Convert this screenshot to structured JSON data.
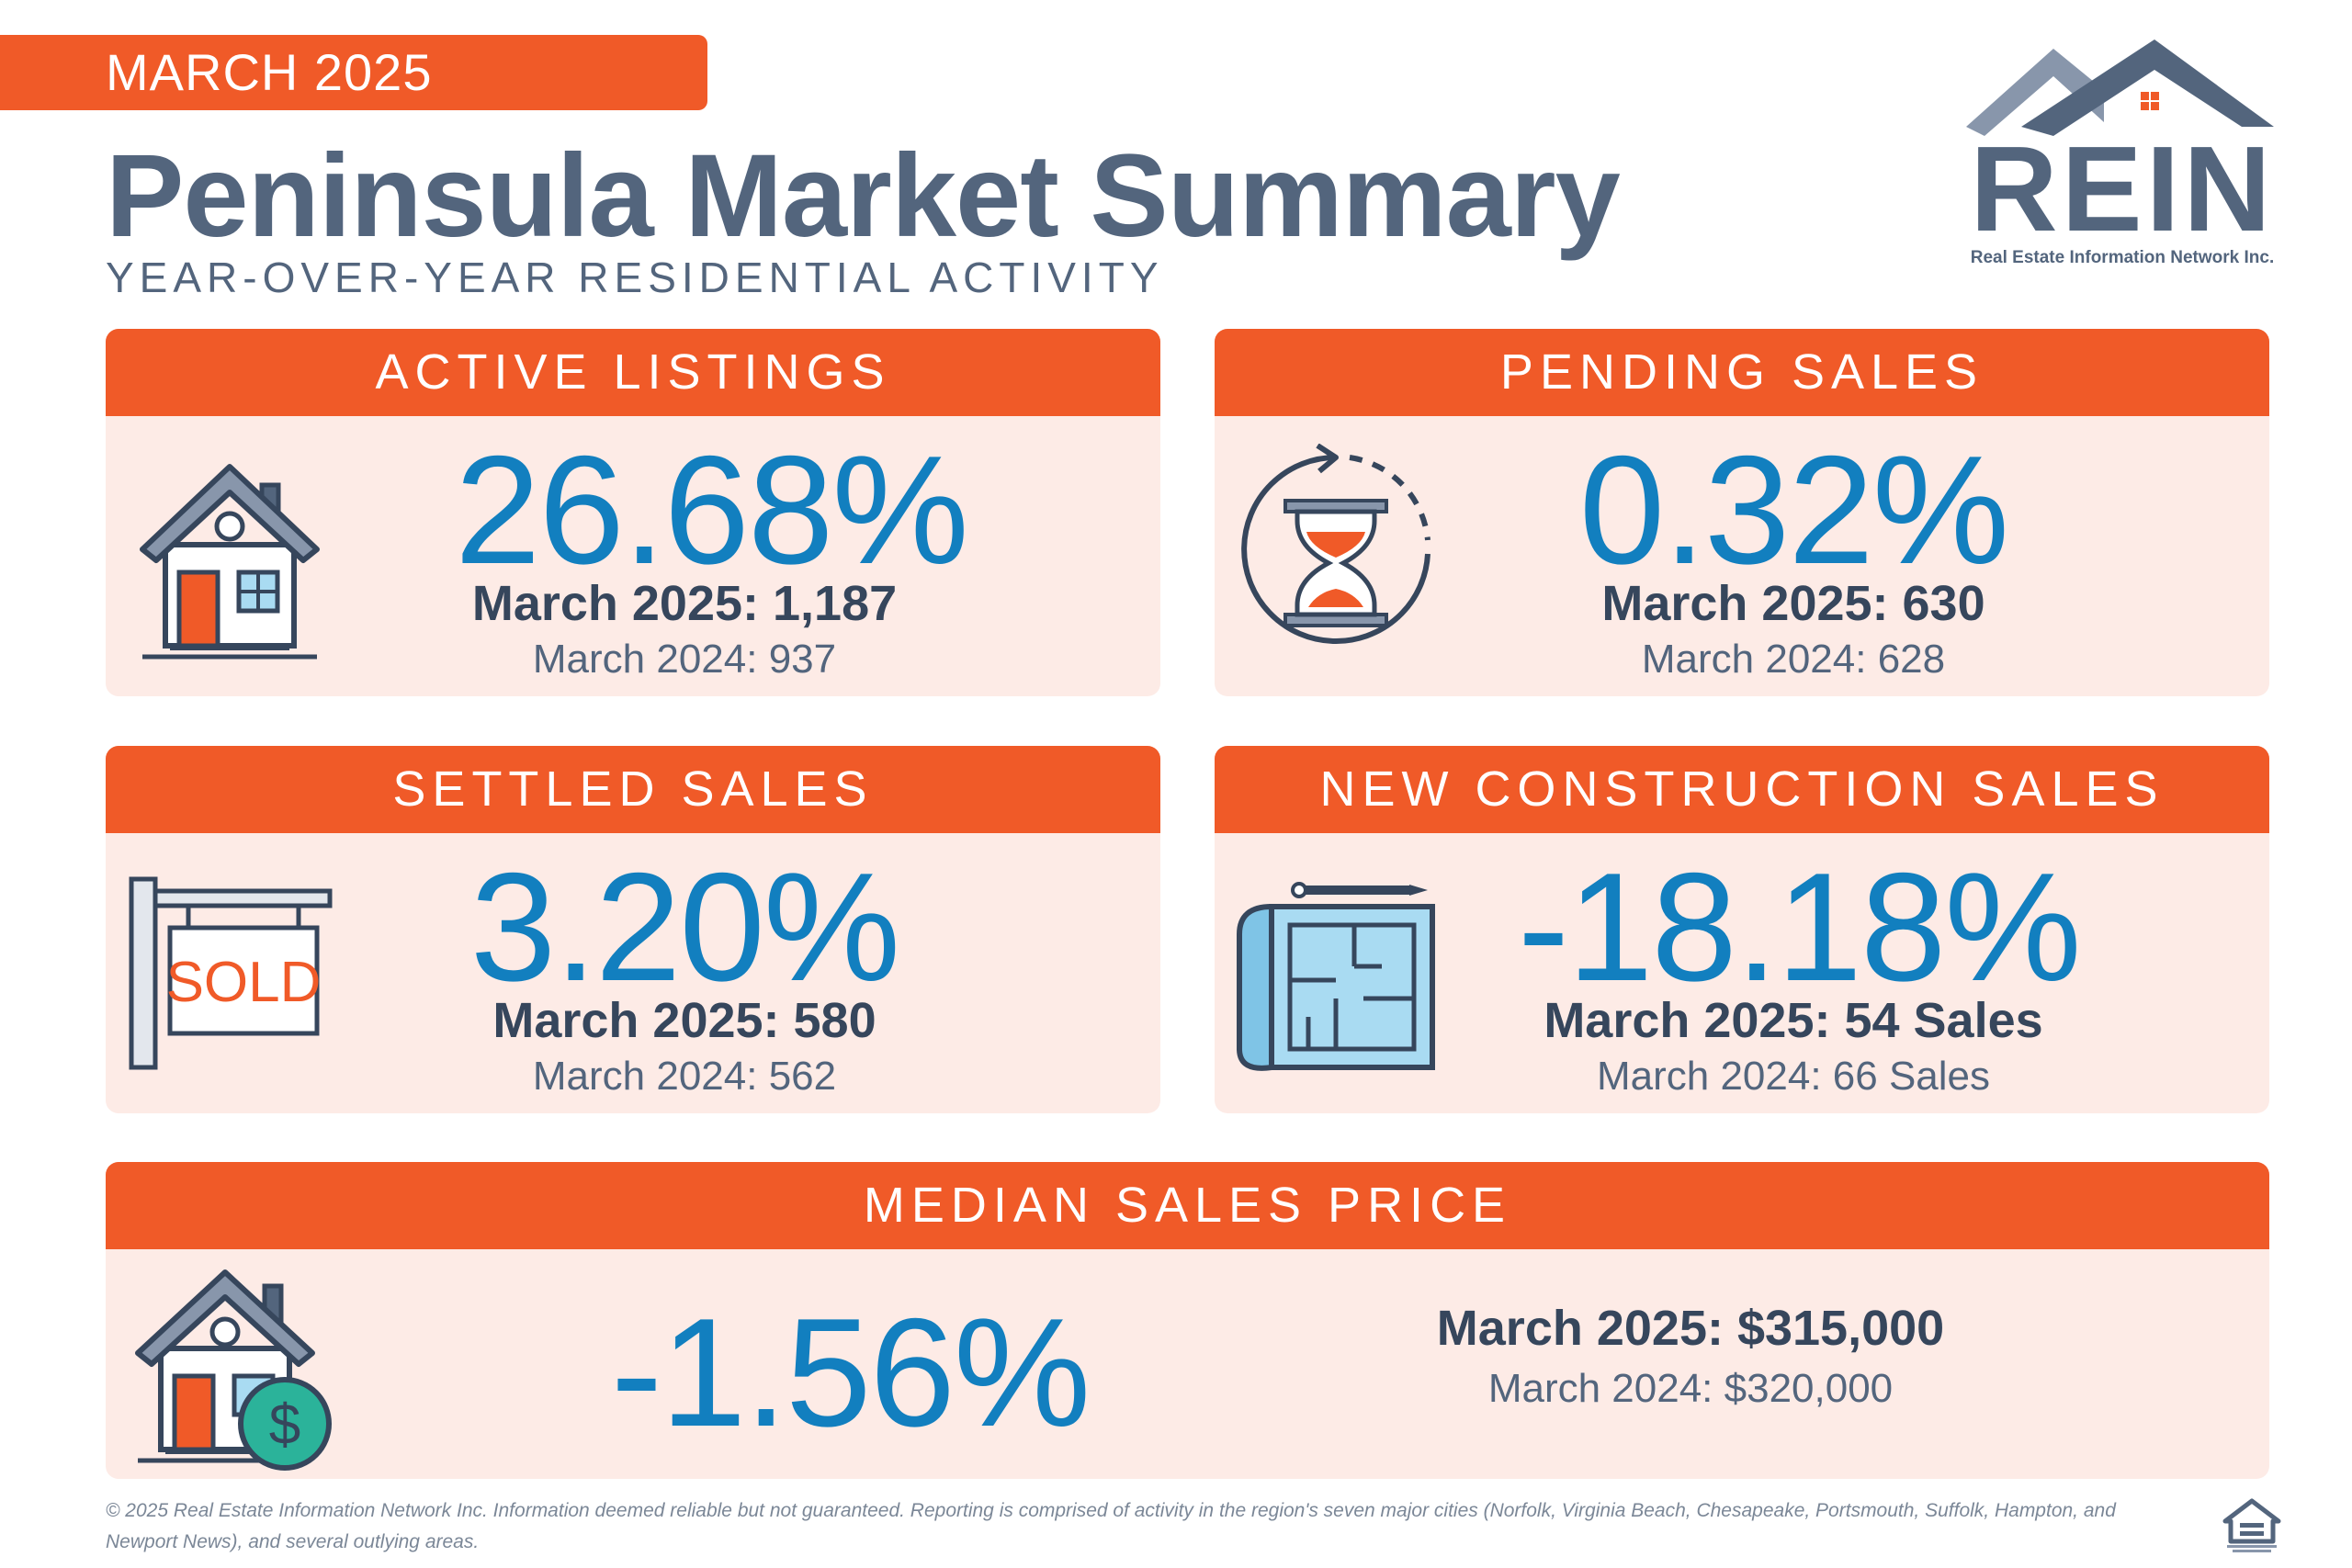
{
  "header": {
    "month": "MARCH 2025",
    "title": "Peninsula Market Summary",
    "subtitle": "YEAR-OVER-YEAR RESIDENTIAL ACTIVITY"
  },
  "logo": {
    "word": "REIN",
    "tagline": "Real Estate Information Network Inc."
  },
  "cards": {
    "active_listings": {
      "title": "ACTIVE LISTINGS",
      "icon": "house-icon",
      "change": "26.68%",
      "current": "March 2025: 1,187",
      "previous": "March 2024: 937"
    },
    "pending_sales": {
      "title": "PENDING SALES",
      "icon": "hourglass-icon",
      "change": "0.32%",
      "current": "March 2025: 630",
      "previous": "March 2024: 628"
    },
    "settled_sales": {
      "title": "SETTLED SALES",
      "icon": "sold-sign-icon",
      "sign_text": "SOLD",
      "change": "3.20%",
      "current": "March 2025: 580",
      "previous": "March 2024: 562"
    },
    "new_construction": {
      "title": "NEW CONSTRUCTION SALES",
      "icon": "blueprint-icon",
      "change": "-18.18%",
      "current": "March 2025: 54 Sales",
      "previous": "March 2024: 66 Sales"
    },
    "median_price": {
      "title": "MEDIAN SALES PRICE",
      "icon": "house-dollar-icon",
      "dollar_symbol": "$",
      "change": "-1.56%",
      "current": "March 2025: $315,000",
      "previous": "March 2024: $320,000"
    }
  },
  "footer": {
    "disclaimer": "© 2025 Real Estate Information Network Inc. Information deemed reliable but not guaranteed. Reporting is comprised of activity in the region's seven major cities (Norfolk, Virginia Beach, Chesapeake, Portsmouth, Suffolk, Hampton, and Newport News), and several outlying areas."
  },
  "colors": {
    "accent": "#f05a28",
    "card_bg": "#fdebe6",
    "title": "#53657d",
    "percent": "#127fbf",
    "dark_text": "#36465c"
  }
}
